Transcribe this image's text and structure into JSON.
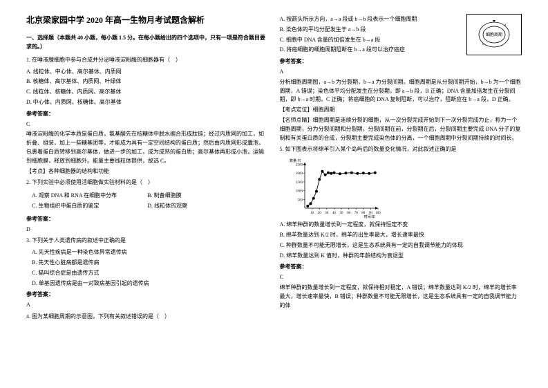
{
  "title": "北京梁家园中学 2020 年高一生物月考试题含解析",
  "section1": "一、选择题（本题共 40 小题，每小题 1.5 分。在每小题给出的四个选项中，只有一项是符合题目要求的。）",
  "q1": {
    "stem": "1. 在唾液腺细胞中参与合成并分泌唾液淀粉酶的细胞器有（　）",
    "A": "A. 线粒体、中心体、高尔基体、内质网",
    "B": "B. 核糖体、高尔基体、内质网、叶绿体",
    "C": "C. 线粒体、核糖体、内质网、高尔基体",
    "D": "D. 中心体、内质网、核糖体、高尔基体",
    "ansLabel": "参考答案：",
    "ans": "C",
    "exp1": "唾液淀粉酶的化学本质是蛋白质，氨基酸先在核糖体中脱水缩合形成肽链；经过内质网的加工，如折叠、组装，加上一些糖基团等，才能成为具有一定空间结构的蛋白质；然后由内质网形成囊泡，包裹着蛋白质转移到高尔基体，做进一步的加工，成为成熟的蛋白质；高尔基体再形成小泡，运输到细胞膜，释放到细胞外。能量主要线粒体提供，故选 C。",
    "kp": "【考点】各种细胞器的结构和功能"
  },
  "q2": {
    "stem": "2. 下列实验中必须使用活细胞做实验材料的是（　）",
    "A": "A.  观察 DNA 和 RNA 在细胞中分布",
    "B": "B.  制备细胞膜",
    "C": "C.  生物组织中蛋白质的鉴定",
    "D": "D.  线粒体的观察",
    "ansLabel": "参考答案：",
    "ans": "D"
  },
  "q3": {
    "stem": "3. 下列关于人类遗传病的叙述中正确的是",
    "A": "A.  先天性疾病是一种染色体异常遗传病",
    "B": "B.  先天性心脏病都是遗传病",
    "C": "C.  猫叫综合症是由遗传方式",
    "D": "D.  单基因遗传病是由一对致病基因引起的遗传病",
    "ansLabel": "参考答案：",
    "ans": "A"
  },
  "q4": {
    "stem": "4. 图为某细胞周期的示意图，下列有关叙述错误的是（　）",
    "diagramLabel": "细胞周期",
    "A": "A.  按箭头所示方向，a→a 段或 b→b 段表示一个细胞周期",
    "B": "B.  染色体的平均分配发生于 a→b 段",
    "C": "C.  细胞中 DNA 含量的加倍发生在 b→a 段",
    "D": "D.  将癌细胞的细胞周期阻断在 b→a 段可以治疗癌症",
    "ansLabel": "参考答案：",
    "ans": "A",
    "exp1": "分析细胞周期图，a→b 为分裂期，b→a 为分裂间期。细胞周期是从分裂间期开始，b→b 为一个细胞周期，A 错误；染色体平均分配发生在分裂期，即 a→b 段，B 正确；DNA 含量加倍发生在分裂间期，即 b→a 时期，C 正确；将癌细胞的 DNA 复制阻断，可以治疗，阻断应在 b→a 段，D 正确。",
    "kpLabel": "【考点定位】细胞周期",
    "kp2": "【名师点睛】细胞周期是连续分裂的细胞，从一次分裂完成开始到下一次分裂完成为止，称为一个细胞周期，分为分裂间期和分裂期。分裂间期在前，分裂期在后，分裂间期主要完成 DNA 分子的复制和有关蛋白质的合成，分裂期主要完成染色体的分离，一个细胞周期中分裂间期持续的时间长。"
  },
  "q5": {
    "stem": "5. 如下图表示将绵羊引入某个岛屿后的数量变化情况，对此叙述正确的是",
    "chart": {
      "ylabel": "数量/只",
      "yticks": [
        500,
        1000,
        1500,
        2000,
        2500
      ],
      "xticks": [
        10,
        20,
        30,
        40,
        50,
        60,
        70,
        80,
        90,
        100
      ],
      "xlabel": "时间/年",
      "points": [
        [
          4,
          120
        ],
        [
          8,
          260
        ],
        [
          12,
          560
        ],
        [
          16,
          960
        ],
        [
          20,
          1640
        ],
        [
          24,
          2100
        ],
        [
          28,
          1900
        ],
        [
          32,
          2020
        ],
        [
          36,
          1980
        ],
        [
          40,
          2020
        ],
        [
          48,
          1960
        ],
        [
          56,
          2000
        ],
        [
          64,
          2020
        ],
        [
          72,
          1980
        ],
        [
          80,
          2000
        ],
        [
          88,
          1980
        ],
        [
          96,
          2020
        ]
      ],
      "ylim": [
        0,
        2600
      ],
      "xlim": [
        0,
        100
      ],
      "line_color": "#000000",
      "marker": "circle",
      "marker_size": 2
    },
    "A": "A.  绵羊种群的数量增长到一定程度，就保持恒定不变",
    "B": "B.  绵羊数量达到 K/2 时，绵羊的出生率最大，增长速率最快",
    "C": "C.  种群数量不可能无限增长，这是生态系统具有一定的自我调节能力的体现",
    "D": "D.  绵羊数量达到 K 值时，种群的年龄结构为衰退型",
    "ansLabel": "参考答案：",
    "ans": "C",
    "exp1": "绵羊种群的数量增长到一定程度，就保持相对稳定，A 错误；绵羊数量达到 K/2 时，绵羊的增长率最大，增长速率最快，B 错误；种群数量不可能无限增长，这是生态系统具有一定的自我调节能力的体"
  }
}
